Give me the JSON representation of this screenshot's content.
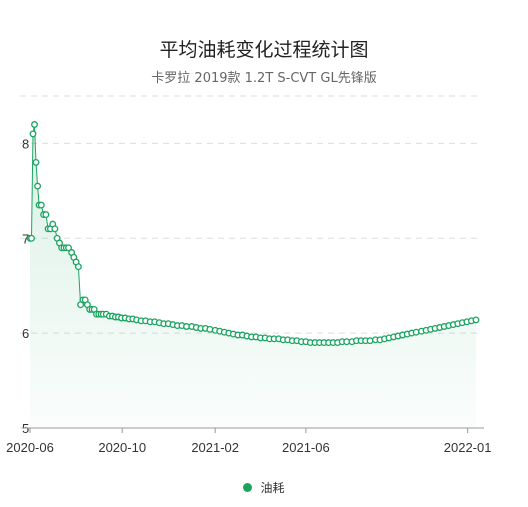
{
  "chart_data": {
    "type": "line",
    "title": "平均油耗变化过程统计图",
    "subtitle": "卡罗拉 2019款 1.2T S-CVT GL先锋版",
    "xlabel": "",
    "ylabel": "",
    "ylim": [
      5,
      8.5
    ],
    "y_ticks": [
      5,
      6,
      7,
      8
    ],
    "x_range": [
      "2020-06-01",
      "2022-01-20"
    ],
    "x_ticks": [
      "2020-06",
      "2020-10",
      "2021-02",
      "2021-06",
      "2022-01"
    ],
    "grid": true,
    "area_fill": true,
    "legend_position": "bottom",
    "colors": {
      "series": "#1aa460",
      "fill": "#e6f6ee",
      "grid": "#dddddd"
    },
    "series": [
      {
        "name": "油耗",
        "x": [
          "2020-06-01",
          "2020-06-03",
          "2020-06-05",
          "2020-06-07",
          "2020-06-09",
          "2020-06-11",
          "2020-06-13",
          "2020-06-16",
          "2020-06-19",
          "2020-06-22",
          "2020-06-25",
          "2020-06-28",
          "2020-07-01",
          "2020-07-04",
          "2020-07-07",
          "2020-07-10",
          "2020-07-13",
          "2020-07-16",
          "2020-07-19",
          "2020-07-22",
          "2020-07-26",
          "2020-07-29",
          "2020-08-01",
          "2020-08-04",
          "2020-08-07",
          "2020-08-10",
          "2020-08-13",
          "2020-08-16",
          "2020-08-19",
          "2020-08-22",
          "2020-08-25",
          "2020-08-28",
          "2020-08-31",
          "2020-09-03",
          "2020-09-06",
          "2020-09-10",
          "2020-09-14",
          "2020-09-18",
          "2020-09-22",
          "2020-09-26",
          "2020-09-30",
          "2020-10-05",
          "2020-10-10",
          "2020-10-15",
          "2020-10-20",
          "2020-10-26",
          "2020-11-01",
          "2020-11-07",
          "2020-11-13",
          "2020-11-19",
          "2020-11-25",
          "2020-12-01",
          "2020-12-07",
          "2020-12-13",
          "2020-12-19",
          "2020-12-25",
          "2021-01-01",
          "2021-01-07",
          "2021-01-13",
          "2021-01-19",
          "2021-01-25",
          "2021-02-01",
          "2021-02-07",
          "2021-02-13",
          "2021-02-19",
          "2021-02-25",
          "2021-03-03",
          "2021-03-09",
          "2021-03-15",
          "2021-03-21",
          "2021-03-27",
          "2021-04-02",
          "2021-04-08",
          "2021-04-14",
          "2021-04-20",
          "2021-04-26",
          "2021-05-02",
          "2021-05-08",
          "2021-05-14",
          "2021-05-20",
          "2021-05-26",
          "2021-06-01",
          "2021-06-07",
          "2021-06-13",
          "2021-06-19",
          "2021-06-25",
          "2021-07-01",
          "2021-07-07",
          "2021-07-13",
          "2021-07-19",
          "2021-07-25",
          "2021-08-01",
          "2021-08-07",
          "2021-08-13",
          "2021-08-19",
          "2021-08-25",
          "2021-09-01",
          "2021-09-07",
          "2021-09-13",
          "2021-09-19",
          "2021-09-25",
          "2021-10-01",
          "2021-10-07",
          "2021-10-13",
          "2021-10-19",
          "2021-10-25",
          "2021-11-01",
          "2021-11-07",
          "2021-11-13",
          "2021-11-19",
          "2021-11-25",
          "2021-12-01",
          "2021-12-07",
          "2021-12-13",
          "2021-12-19",
          "2021-12-25",
          "2021-12-31",
          "2022-01-06",
          "2022-01-12"
        ],
        "values": [
          7.0,
          7.0,
          8.1,
          8.2,
          7.8,
          7.55,
          7.35,
          7.35,
          7.25,
          7.25,
          7.1,
          7.1,
          7.15,
          7.1,
          7.0,
          6.95,
          6.9,
          6.9,
          6.9,
          6.9,
          6.85,
          6.8,
          6.75,
          6.7,
          6.3,
          6.35,
          6.35,
          6.3,
          6.25,
          6.25,
          6.25,
          6.2,
          6.2,
          6.2,
          6.2,
          6.2,
          6.18,
          6.18,
          6.17,
          6.17,
          6.16,
          6.16,
          6.15,
          6.15,
          6.14,
          6.13,
          6.13,
          6.12,
          6.12,
          6.11,
          6.1,
          6.1,
          6.09,
          6.08,
          6.08,
          6.07,
          6.07,
          6.06,
          6.05,
          6.05,
          6.04,
          6.03,
          6.02,
          6.01,
          6.0,
          5.99,
          5.98,
          5.98,
          5.97,
          5.96,
          5.96,
          5.95,
          5.95,
          5.94,
          5.94,
          5.94,
          5.93,
          5.93,
          5.92,
          5.92,
          5.91,
          5.91,
          5.9,
          5.9,
          5.9,
          5.9,
          5.9,
          5.9,
          5.9,
          5.91,
          5.91,
          5.91,
          5.92,
          5.92,
          5.92,
          5.92,
          5.93,
          5.93,
          5.94,
          5.95,
          5.96,
          5.97,
          5.98,
          5.99,
          6.0,
          6.01,
          6.02,
          6.03,
          6.04,
          6.05,
          6.06,
          6.07,
          6.08,
          6.09,
          6.1,
          6.11,
          6.12,
          6.13,
          6.14
        ]
      }
    ]
  }
}
